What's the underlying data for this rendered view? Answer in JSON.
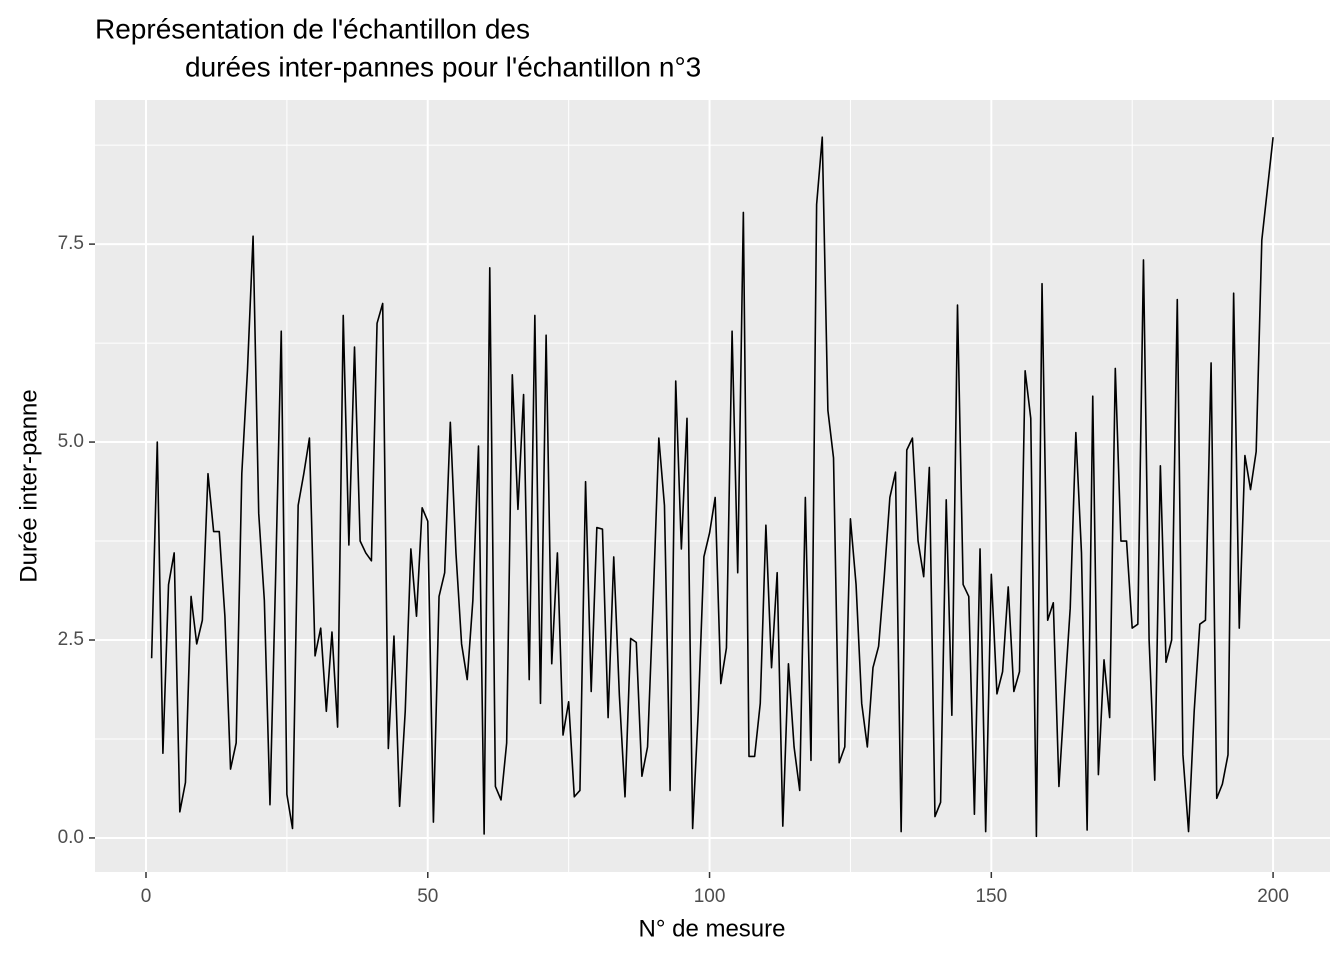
{
  "chart_data": {
    "type": "line",
    "title": [
      "Représentation de l'échantillon des",
      "durées inter-pannes pour l'échantillon n°3"
    ],
    "x_label": "N° de mesure",
    "y_label": "Durée inter-panne",
    "x": [
      1,
      2,
      3,
      4,
      5,
      6,
      7,
      8,
      9,
      10,
      11,
      12,
      13,
      14,
      15,
      16,
      17,
      18,
      19,
      20,
      21,
      22,
      23,
      24,
      25,
      26,
      27,
      28,
      29,
      30,
      31,
      32,
      33,
      34,
      35,
      36,
      37,
      38,
      39,
      40,
      41,
      42,
      43,
      44,
      45,
      46,
      47,
      48,
      49,
      50,
      51,
      52,
      53,
      54,
      55,
      56,
      57,
      58,
      59,
      60,
      61,
      62,
      63,
      64,
      65,
      66,
      67,
      68,
      69,
      70,
      71,
      72,
      73,
      74,
      75,
      76,
      77,
      78,
      79,
      80,
      81,
      82,
      83,
      84,
      85,
      86,
      87,
      88,
      89,
      90,
      91,
      92,
      93,
      94,
      95,
      96,
      97,
      98,
      99,
      100,
      101,
      102,
      103,
      104,
      105,
      106,
      107,
      108,
      109,
      110,
      111,
      112,
      113,
      114,
      115,
      116,
      117,
      118,
      119,
      120,
      121,
      122,
      123,
      124,
      125,
      126,
      127,
      128,
      129,
      130,
      131,
      132,
      133,
      134,
      135,
      136,
      137,
      138,
      139,
      140,
      141,
      142,
      143,
      144,
      145,
      146,
      147,
      148,
      149,
      150,
      151,
      152,
      153,
      154,
      155,
      156,
      157,
      158,
      159,
      160,
      161,
      162,
      163,
      164,
      165,
      166,
      167,
      168,
      169,
      170,
      171,
      172,
      173,
      174,
      175,
      176,
      177,
      178,
      179,
      180,
      181,
      182,
      183,
      184,
      185,
      186,
      187,
      188,
      189,
      190,
      191,
      192,
      193,
      194,
      195,
      196,
      197,
      198,
      199,
      200
    ],
    "series": [
      {
        "color": "#000000",
        "values": [
          2.27,
          5.0,
          1.07,
          3.2,
          3.6,
          0.33,
          0.7,
          3.05,
          2.45,
          2.75,
          4.6,
          3.87,
          3.87,
          2.8,
          0.87,
          1.2,
          4.6,
          5.9,
          7.6,
          4.1,
          3.0,
          0.42,
          3.3,
          6.4,
          0.55,
          0.12,
          4.2,
          4.6,
          5.05,
          2.3,
          2.65,
          1.6,
          2.6,
          1.4,
          6.6,
          3.7,
          6.2,
          3.75,
          3.6,
          3.5,
          6.5,
          6.75,
          1.13,
          2.55,
          0.4,
          1.6,
          3.65,
          2.8,
          4.17,
          4.0,
          0.2,
          3.05,
          3.35,
          5.25,
          3.6,
          2.45,
          2.0,
          3.0,
          4.95,
          0.05,
          7.2,
          0.65,
          0.48,
          1.2,
          5.85,
          4.15,
          5.6,
          2.0,
          6.6,
          1.7,
          6.35,
          2.2,
          3.6,
          1.3,
          1.72,
          0.52,
          0.6,
          4.5,
          1.85,
          3.92,
          3.9,
          1.52,
          3.55,
          1.8,
          0.52,
          2.52,
          2.47,
          0.78,
          1.15,
          3.0,
          5.05,
          4.2,
          0.6,
          5.77,
          3.65,
          5.3,
          0.12,
          1.6,
          3.55,
          3.85,
          4.3,
          1.95,
          2.4,
          6.4,
          3.35,
          7.9,
          1.03,
          1.03,
          1.7,
          3.95,
          2.15,
          3.35,
          0.15,
          2.2,
          1.15,
          0.6,
          4.3,
          0.98,
          8.0,
          8.85,
          5.4,
          4.8,
          0.95,
          1.15,
          4.03,
          3.2,
          1.7,
          1.15,
          2.15,
          2.42,
          3.3,
          4.3,
          4.62,
          0.08,
          4.9,
          5.05,
          3.75,
          3.3,
          4.68,
          0.27,
          0.45,
          4.27,
          1.55,
          6.73,
          3.2,
          3.05,
          0.3,
          3.65,
          0.08,
          3.33,
          1.82,
          2.1,
          3.17,
          1.85,
          2.1,
          5.9,
          5.3,
          0.02,
          7.0,
          2.75,
          2.97,
          0.65,
          1.8,
          2.9,
          5.12,
          3.6,
          0.1,
          5.58,
          0.8,
          2.25,
          1.52,
          5.93,
          3.75,
          3.75,
          2.65,
          2.7,
          7.3,
          2.5,
          0.73,
          4.7,
          2.22,
          2.5,
          6.8,
          1.05,
          0.08,
          1.6,
          2.7,
          2.75,
          6.0,
          0.5,
          0.68,
          1.05,
          6.88,
          2.65,
          4.83,
          4.4,
          4.88,
          7.55,
          8.2,
          8.85
        ]
      }
    ],
    "xlim": [
      -9.05,
      210.1
    ],
    "ylim": [
      -0.43,
      9.32
    ],
    "xticks": [
      0,
      50,
      100,
      150,
      200
    ],
    "yticks": [
      {
        "value": 0,
        "label": "0.0"
      },
      {
        "value": 2.5,
        "label": "2.5"
      },
      {
        "value": 5,
        "label": "5.0"
      },
      {
        "value": 7.5,
        "label": "7.5"
      }
    ],
    "grid": true
  }
}
